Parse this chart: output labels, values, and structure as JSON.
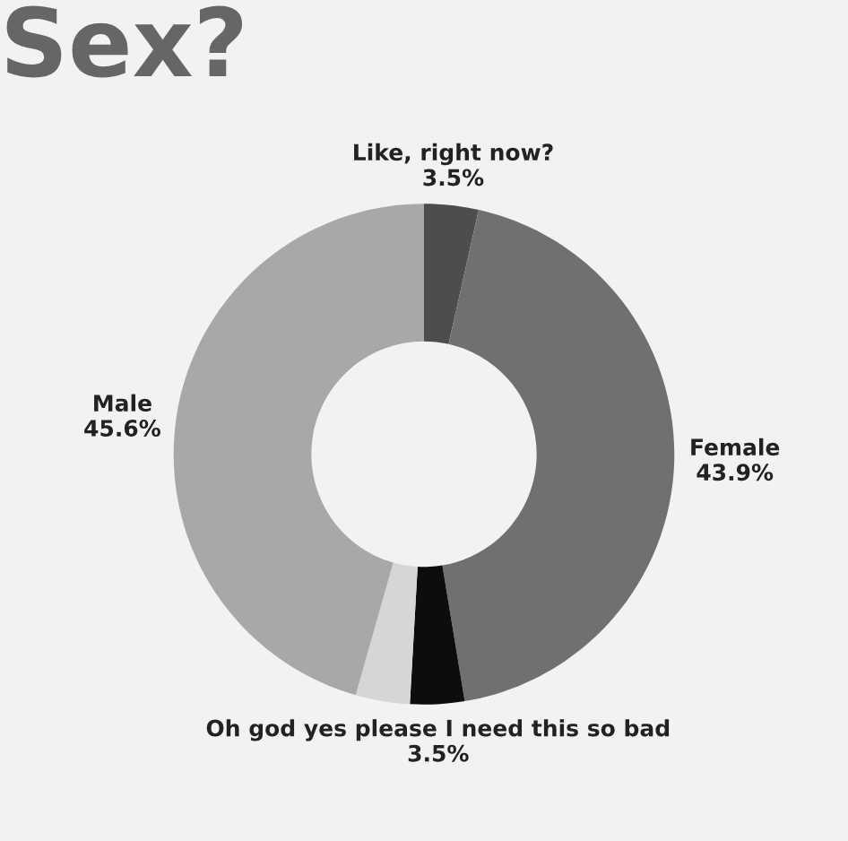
{
  "chart_data": {
    "type": "donut",
    "title": "Sex?",
    "categories": [
      "Like, right now?",
      "Female",
      "Oh god yes please I need this so bad",
      null,
      "Male"
    ],
    "values": [
      3.5,
      43.9,
      3.5,
      3.5,
      45.6
    ],
    "value_labels": [
      "3.5%",
      "43.9%",
      "3.5%",
      null,
      "45.6%"
    ],
    "colors": [
      "#4d4d4d",
      "#707070",
      "#0d0d0d",
      "#d6d6d6",
      "#a8a8a8"
    ]
  }
}
